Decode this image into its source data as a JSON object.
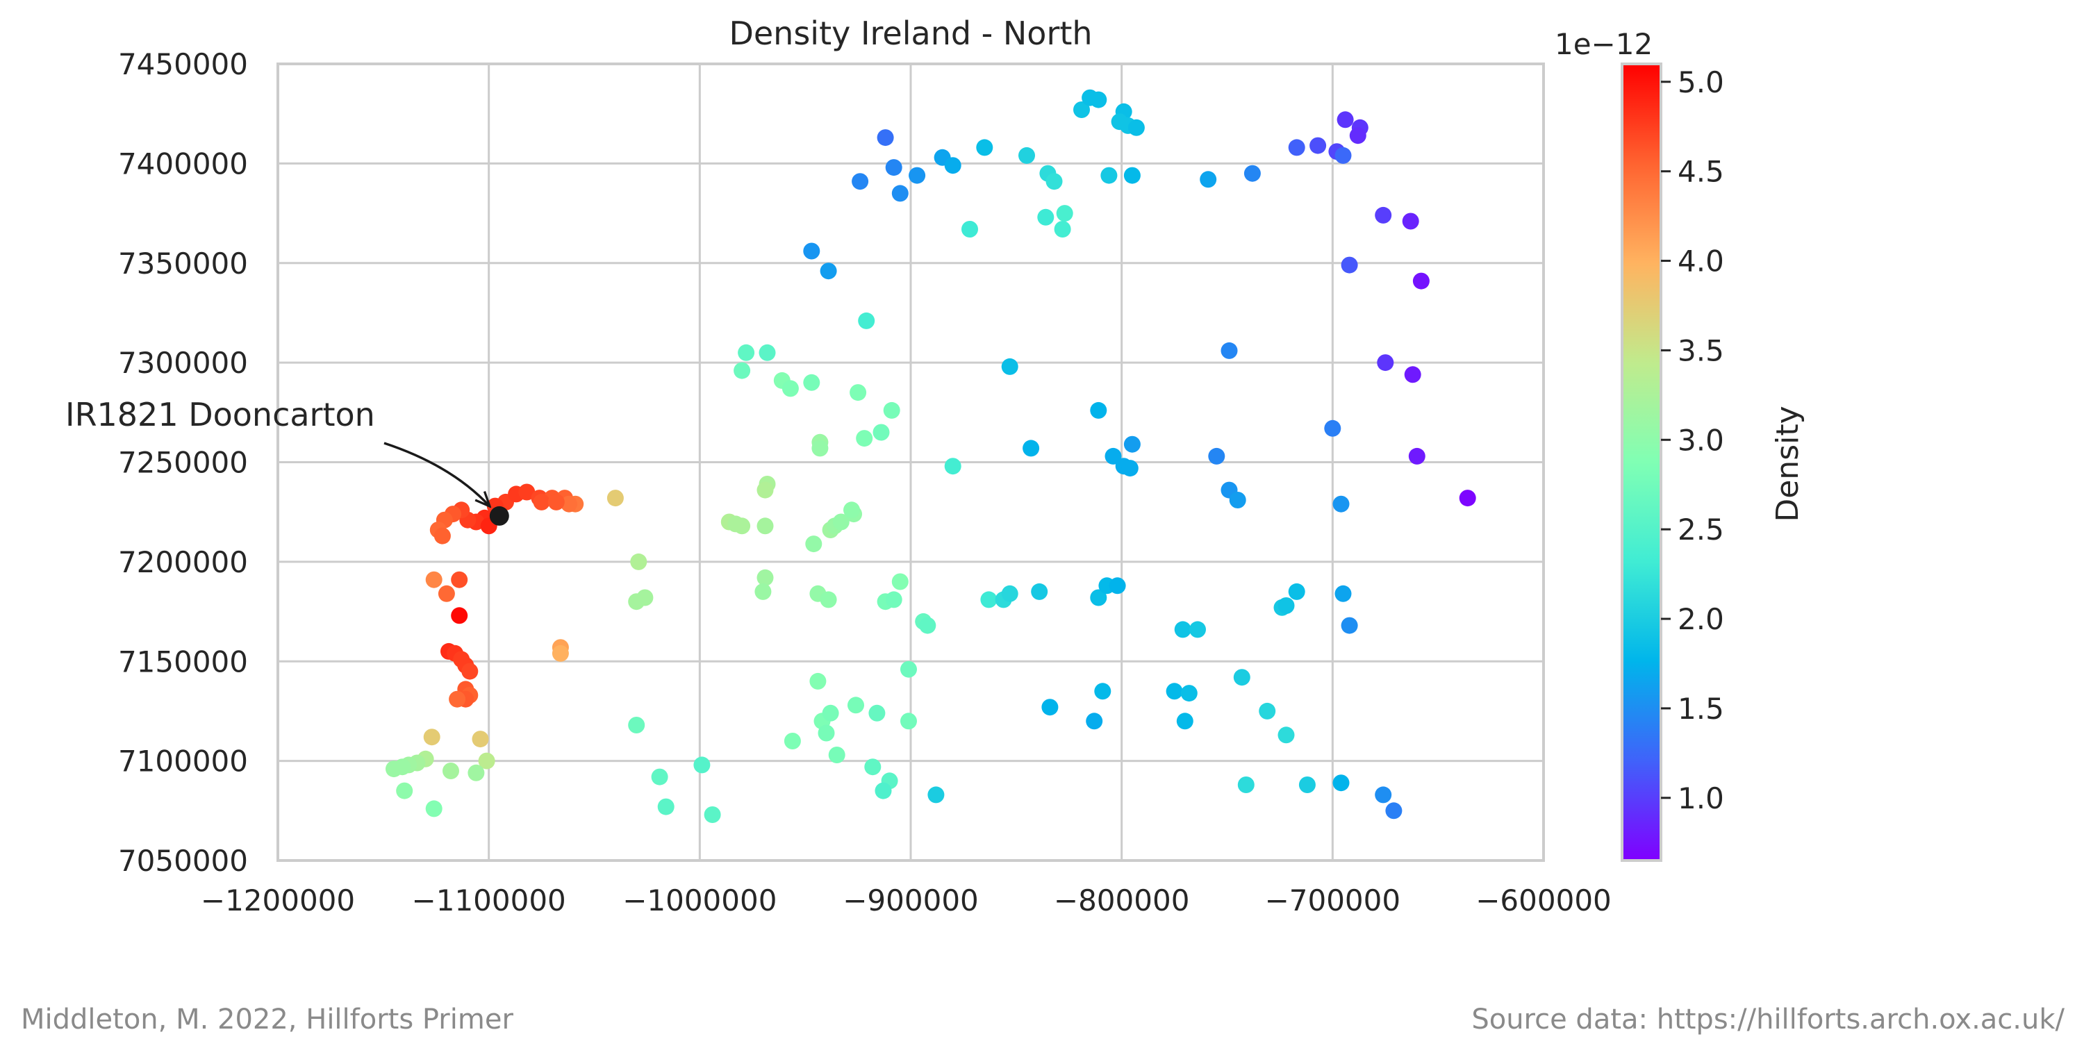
{
  "chart_data": {
    "type": "scatter",
    "title": "Density Ireland - North",
    "xlabel": "",
    "ylabel": "",
    "xlim": [
      -1200000,
      -600000
    ],
    "ylim": [
      7050000,
      7450000
    ],
    "x_ticks": [
      -1200000,
      -1100000,
      -1000000,
      -900000,
      -800000,
      -700000,
      -600000
    ],
    "x_tick_labels": [
      "−1200000",
      "−1100000",
      "−1000000",
      "−900000",
      "−800000",
      "−700000",
      "−600000"
    ],
    "y_ticks": [
      7050000,
      7100000,
      7150000,
      7200000,
      7250000,
      7300000,
      7350000,
      7400000,
      7450000
    ],
    "y_tick_labels": [
      "7050000",
      "7100000",
      "7150000",
      "7200000",
      "7250000",
      "7300000",
      "7350000",
      "7400000",
      "7450000"
    ],
    "grid": true,
    "colorbar": {
      "label": "Density",
      "scale_label": "1e−12",
      "range": [
        0.65,
        5.1
      ],
      "ticks": [
        1.0,
        1.5,
        2.0,
        2.5,
        3.0,
        3.5,
        4.0,
        4.5,
        5.0
      ],
      "tick_labels": [
        "1.0",
        "1.5",
        "2.0",
        "2.5",
        "3.0",
        "3.5",
        "4.0",
        "4.5",
        "5.0"
      ],
      "colormap": "rainbow"
    },
    "highlight": {
      "label": "IR1821 Dooncarton",
      "x": -1095000,
      "y": 7223000,
      "color": "#1a1a1a"
    },
    "points": [
      [
        -1092000,
        7230000,
        4.75
      ],
      [
        -1087000,
        7234000,
        4.78
      ],
      [
        -1082000,
        7235000,
        4.75
      ],
      [
        -1076000,
        7232000,
        4.7
      ],
      [
        -1070000,
        7232000,
        4.6
      ],
      [
        -1064000,
        7232000,
        4.55
      ],
      [
        -1059000,
        7229000,
        4.4
      ],
      [
        -1062000,
        7229000,
        4.45
      ],
      [
        -1075000,
        7230000,
        4.65
      ],
      [
        -1068000,
        7230000,
        4.6
      ],
      [
        -1097000,
        7228000,
        4.8
      ],
      [
        -1040000,
        7232000,
        3.75
      ],
      [
        -1102000,
        7222000,
        4.85
      ],
      [
        -1106000,
        7220000,
        4.8
      ],
      [
        -1110000,
        7221000,
        4.75
      ],
      [
        -1113000,
        7226000,
        4.7
      ],
      [
        -1117000,
        7224000,
        4.6
      ],
      [
        -1121000,
        7221000,
        4.55
      ],
      [
        -1124000,
        7216000,
        4.5
      ],
      [
        -1122000,
        7213000,
        4.55
      ],
      [
        -1100000,
        7218000,
        4.9
      ],
      [
        -1126000,
        7191000,
        4.3
      ],
      [
        -1114000,
        7191000,
        4.65
      ],
      [
        -1120000,
        7184000,
        4.5
      ],
      [
        -1114000,
        7173000,
        5.05
      ],
      [
        -1066000,
        7157000,
        4.1
      ],
      [
        -1066000,
        7154000,
        4.0
      ],
      [
        -1119000,
        7155000,
        4.85
      ],
      [
        -1116000,
        7154000,
        4.8
      ],
      [
        -1113000,
        7151000,
        4.75
      ],
      [
        -1111000,
        7148000,
        4.75
      ],
      [
        -1109000,
        7145000,
        4.7
      ],
      [
        -1111000,
        7136000,
        4.6
      ],
      [
        -1109000,
        7133000,
        4.55
      ],
      [
        -1111000,
        7131000,
        4.6
      ],
      [
        -1115000,
        7131000,
        4.5
      ],
      [
        -1127000,
        7112000,
        3.75
      ],
      [
        -1104000,
        7111000,
        3.75
      ],
      [
        -1130000,
        7101000,
        3.3
      ],
      [
        -1134000,
        7099000,
        3.2
      ],
      [
        -1138000,
        7098000,
        3.15
      ],
      [
        -1141000,
        7097000,
        3.1
      ],
      [
        -1145000,
        7096000,
        3.1
      ],
      [
        -1118000,
        7095000,
        3.2
      ],
      [
        -1101000,
        7100000,
        3.4
      ],
      [
        -1106000,
        7094000,
        3.15
      ],
      [
        -1140000,
        7085000,
        3.0
      ],
      [
        -1126000,
        7076000,
        2.9
      ],
      [
        -1029000,
        7200000,
        3.3
      ],
      [
        -1030000,
        7180000,
        3.2
      ],
      [
        -1026000,
        7182000,
        3.2
      ],
      [
        -1030000,
        7118000,
        2.7
      ],
      [
        -1019000,
        7092000,
        2.6
      ],
      [
        -1016000,
        7077000,
        2.55
      ],
      [
        -999000,
        7098000,
        2.5
      ],
      [
        -994000,
        7073000,
        2.55
      ],
      [
        -986000,
        7220000,
        3.3
      ],
      [
        -983000,
        7219000,
        3.25
      ],
      [
        -980000,
        7218000,
        3.25
      ],
      [
        -968000,
        7239000,
        3.25
      ],
      [
        -969000,
        7236000,
        3.3
      ],
      [
        -969000,
        7218000,
        3.2
      ],
      [
        -969000,
        7192000,
        3.15
      ],
      [
        -970000,
        7185000,
        3.1
      ],
      [
        -978000,
        7305000,
        2.6
      ],
      [
        -980000,
        7296000,
        2.7
      ],
      [
        -968000,
        7305000,
        2.55
      ],
      [
        -961000,
        7291000,
        2.9
      ],
      [
        -957000,
        7287000,
        2.85
      ],
      [
        -947000,
        7290000,
        2.8
      ],
      [
        -943000,
        7260000,
        3.1
      ],
      [
        -943000,
        7257000,
        3.05
      ],
      [
        -946000,
        7209000,
        3.05
      ],
      [
        -938000,
        7216000,
        3.15
      ],
      [
        -936000,
        7218000,
        3.1
      ],
      [
        -933000,
        7220000,
        3.05
      ],
      [
        -927000,
        7224000,
        3.05
      ],
      [
        -928000,
        7226000,
        3.0
      ],
      [
        -944000,
        7184000,
        3.05
      ],
      [
        -939000,
        7181000,
        3.0
      ],
      [
        -944000,
        7140000,
        2.9
      ],
      [
        -942000,
        7120000,
        2.85
      ],
      [
        -938000,
        7124000,
        2.8
      ],
      [
        -940000,
        7114000,
        2.8
      ],
      [
        -956000,
        7110000,
        2.85
      ],
      [
        -935000,
        7103000,
        2.8
      ],
      [
        -926000,
        7128000,
        2.8
      ],
      [
        -916000,
        7124000,
        2.65
      ],
      [
        -925000,
        7285000,
        2.85
      ],
      [
        -922000,
        7262000,
        2.85
      ],
      [
        -914000,
        7265000,
        2.75
      ],
      [
        -909000,
        7276000,
        2.8
      ],
      [
        -905000,
        7190000,
        2.9
      ],
      [
        -912000,
        7180000,
        2.8
      ],
      [
        -908000,
        7181000,
        2.75
      ],
      [
        -894000,
        7170000,
        2.65
      ],
      [
        -892000,
        7168000,
        2.6
      ],
      [
        -901000,
        7146000,
        2.7
      ],
      [
        -901000,
        7120000,
        2.75
      ],
      [
        -918000,
        7097000,
        2.6
      ],
      [
        -910000,
        7090000,
        2.55
      ],
      [
        -913000,
        7085000,
        2.45
      ],
      [
        -921000,
        7321000,
        2.35
      ],
      [
        -888000,
        7083000,
        2.0
      ],
      [
        -912000,
        7413000,
        1.3
      ],
      [
        -908000,
        7398000,
        1.45
      ],
      [
        -897000,
        7394000,
        1.55
      ],
      [
        -924000,
        7391000,
        1.45
      ],
      [
        -905000,
        7385000,
        1.5
      ],
      [
        -947000,
        7356000,
        1.55
      ],
      [
        -939000,
        7346000,
        1.6
      ],
      [
        -885000,
        7403000,
        1.65
      ],
      [
        -880000,
        7399000,
        1.7
      ],
      [
        -865000,
        7408000,
        1.85
      ],
      [
        -872000,
        7367000,
        2.3
      ],
      [
        -845000,
        7404000,
        2.05
      ],
      [
        -835000,
        7395000,
        2.15
      ],
      [
        -832000,
        7391000,
        2.2
      ],
      [
        -836000,
        7373000,
        2.3
      ],
      [
        -827000,
        7375000,
        2.4
      ],
      [
        -828000,
        7367000,
        2.35
      ],
      [
        -819000,
        7427000,
        1.9
      ],
      [
        -815000,
        7433000,
        1.85
      ],
      [
        -811000,
        7432000,
        1.85
      ],
      [
        -799000,
        7426000,
        1.85
      ],
      [
        -801000,
        7421000,
        1.9
      ],
      [
        -797000,
        7419000,
        1.9
      ],
      [
        -793000,
        7418000,
        1.85
      ],
      [
        -806000,
        7394000,
        1.95
      ],
      [
        -795000,
        7394000,
        1.8
      ],
      [
        -759000,
        7392000,
        1.65
      ],
      [
        -738000,
        7395000,
        1.45
      ],
      [
        -853000,
        7298000,
        1.85
      ],
      [
        -843000,
        7257000,
        1.75
      ],
      [
        -811000,
        7276000,
        1.75
      ],
      [
        -804000,
        7253000,
        1.7
      ],
      [
        -799000,
        7248000,
        1.7
      ],
      [
        -796000,
        7247000,
        1.7
      ],
      [
        -795000,
        7259000,
        1.6
      ],
      [
        -880000,
        7248000,
        2.35
      ],
      [
        -863000,
        7181000,
        2.3
      ],
      [
        -856000,
        7181000,
        2.15
      ],
      [
        -853000,
        7184000,
        2.1
      ],
      [
        -839000,
        7185000,
        1.95
      ],
      [
        -811000,
        7182000,
        1.85
      ],
      [
        -807000,
        7188000,
        1.8
      ],
      [
        -802000,
        7188000,
        1.75
      ],
      [
        -834000,
        7127000,
        1.75
      ],
      [
        -809000,
        7135000,
        1.8
      ],
      [
        -813000,
        7120000,
        1.7
      ],
      [
        -775000,
        7135000,
        1.8
      ],
      [
        -768000,
        7134000,
        1.85
      ],
      [
        -770000,
        7120000,
        1.8
      ],
      [
        -771000,
        7166000,
        1.9
      ],
      [
        -764000,
        7166000,
        1.95
      ],
      [
        -749000,
        7306000,
        1.45
      ],
      [
        -755000,
        7253000,
        1.45
      ],
      [
        -749000,
        7236000,
        1.55
      ],
      [
        -745000,
        7231000,
        1.6
      ],
      [
        -743000,
        7142000,
        2.0
      ],
      [
        -731000,
        7125000,
        2.1
      ],
      [
        -724000,
        7177000,
        1.95
      ],
      [
        -722000,
        7178000,
        1.9
      ],
      [
        -717000,
        7185000,
        1.85
      ],
      [
        -722000,
        7113000,
        2.15
      ],
      [
        -741000,
        7088000,
        2.15
      ],
      [
        -712000,
        7088000,
        2.0
      ],
      [
        -700000,
        7267000,
        1.4
      ],
      [
        -696000,
        7229000,
        1.55
      ],
      [
        -695000,
        7184000,
        1.65
      ],
      [
        -692000,
        7168000,
        1.5
      ],
      [
        -696000,
        7089000,
        1.75
      ],
      [
        -676000,
        7083000,
        1.5
      ],
      [
        -671000,
        7075000,
        1.4
      ],
      [
        -717000,
        7408000,
        1.2
      ],
      [
        -707000,
        7409000,
        1.1
      ],
      [
        -698000,
        7406000,
        1.05
      ],
      [
        -695000,
        7404000,
        1.25
      ],
      [
        -694000,
        7422000,
        0.95
      ],
      [
        -687000,
        7418000,
        0.95
      ],
      [
        -688000,
        7414000,
        0.9
      ],
      [
        -692000,
        7349000,
        1.15
      ],
      [
        -676000,
        7374000,
        1.0
      ],
      [
        -663000,
        7371000,
        0.85
      ],
      [
        -675000,
        7300000,
        0.95
      ],
      [
        -662000,
        7294000,
        0.8
      ],
      [
        -658000,
        7341000,
        0.75
      ],
      [
        -660000,
        7253000,
        0.8
      ],
      [
        -636000,
        7232000,
        0.68
      ]
    ]
  },
  "footer": {
    "left": "Middleton, M. 2022, Hillforts Primer",
    "right": "Source data: https://hillforts.arch.ox.ac.uk/"
  }
}
